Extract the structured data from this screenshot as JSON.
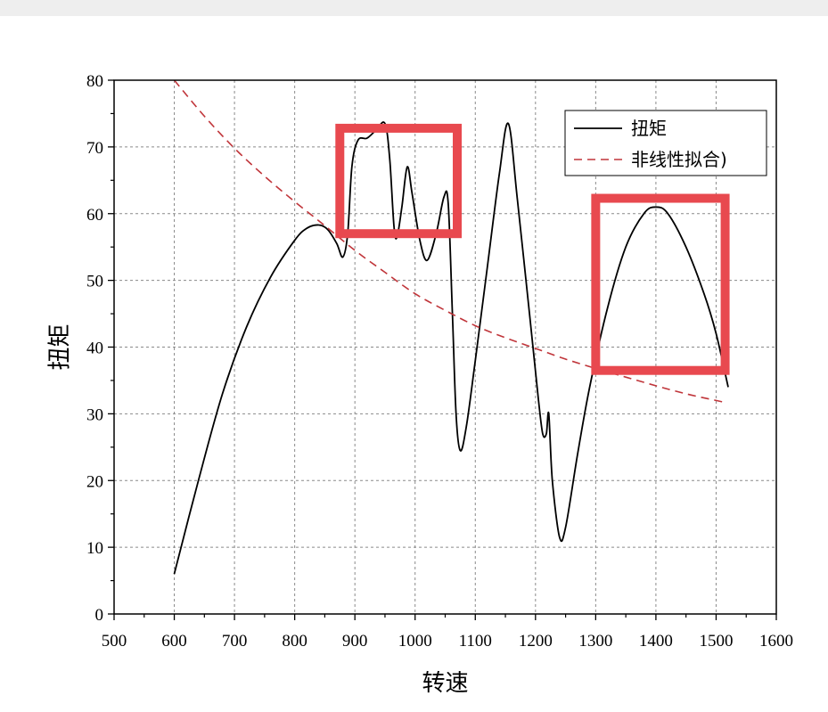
{
  "chart_data": {
    "type": "line",
    "xlabel": "转速",
    "ylabel": "扭矩",
    "xlim": [
      500,
      1600
    ],
    "ylim": [
      0,
      80
    ],
    "x_ticks": [
      500,
      600,
      700,
      800,
      900,
      1000,
      1100,
      1200,
      1300,
      1400,
      1500,
      1600
    ],
    "y_ticks": [
      0,
      10,
      20,
      30,
      40,
      50,
      60,
      70,
      80
    ],
    "grid": true,
    "legend_position": "top-right",
    "series": [
      {
        "name": "扭矩",
        "style": "solid",
        "color": "#000000",
        "points": [
          [
            600,
            6
          ],
          [
            640,
            20
          ],
          [
            680,
            33
          ],
          [
            720,
            43
          ],
          [
            760,
            50.5
          ],
          [
            800,
            56
          ],
          [
            820,
            57.8
          ],
          [
            840,
            58.3
          ],
          [
            855,
            57.6
          ],
          [
            870,
            55.5
          ],
          [
            880,
            53.5
          ],
          [
            888,
            57
          ],
          [
            895,
            67
          ],
          [
            905,
            71
          ],
          [
            920,
            71.3
          ],
          [
            935,
            72.5
          ],
          [
            950,
            73.5
          ],
          [
            958,
            68
          ],
          [
            965,
            58
          ],
          [
            970,
            56.5
          ],
          [
            978,
            61
          ],
          [
            987,
            67
          ],
          [
            995,
            63
          ],
          [
            1008,
            56
          ],
          [
            1020,
            53
          ],
          [
            1035,
            57
          ],
          [
            1048,
            62.5
          ],
          [
            1055,
            61.5
          ],
          [
            1062,
            45
          ],
          [
            1068,
            30
          ],
          [
            1075,
            24.5
          ],
          [
            1085,
            28
          ],
          [
            1100,
            38
          ],
          [
            1120,
            52
          ],
          [
            1140,
            66
          ],
          [
            1155,
            73.5
          ],
          [
            1170,
            62
          ],
          [
            1190,
            45
          ],
          [
            1205,
            32
          ],
          [
            1212,
            27
          ],
          [
            1218,
            27
          ],
          [
            1222,
            30
          ],
          [
            1228,
            20
          ],
          [
            1240,
            11.5
          ],
          [
            1250,
            13
          ],
          [
            1270,
            24
          ],
          [
            1290,
            34
          ],
          [
            1320,
            46
          ],
          [
            1350,
            55
          ],
          [
            1380,
            60
          ],
          [
            1400,
            61
          ],
          [
            1420,
            60
          ],
          [
            1450,
            55
          ],
          [
            1480,
            48
          ],
          [
            1500,
            42
          ],
          [
            1520,
            34
          ]
        ]
      },
      {
        "name": "非线性拟合)",
        "style": "dashed",
        "color": "#c0353a",
        "points": [
          [
            600,
            80
          ],
          [
            650,
            74.6
          ],
          [
            700,
            69.8
          ],
          [
            750,
            65.6
          ],
          [
            800,
            61.8
          ],
          [
            850,
            58.2
          ],
          [
            900,
            54.5
          ],
          [
            950,
            51.2
          ],
          [
            1000,
            48
          ],
          [
            1050,
            45.5
          ],
          [
            1100,
            43.2
          ],
          [
            1150,
            41.4
          ],
          [
            1200,
            39.8
          ],
          [
            1250,
            38.2
          ],
          [
            1300,
            36.8
          ],
          [
            1350,
            35.5
          ],
          [
            1400,
            34.2
          ],
          [
            1450,
            33
          ],
          [
            1500,
            32
          ],
          [
            1515,
            31.7
          ]
        ]
      }
    ],
    "annotations": [
      {
        "shape": "rectangle",
        "color": "#e8494f",
        "x_range": [
          875,
          1070
        ],
        "y_range": [
          57,
          72.8
        ]
      },
      {
        "shape": "rectangle",
        "color": "#e8494f",
        "x_range": [
          1300,
          1515
        ],
        "y_range": [
          36.5,
          62.3
        ]
      }
    ]
  }
}
